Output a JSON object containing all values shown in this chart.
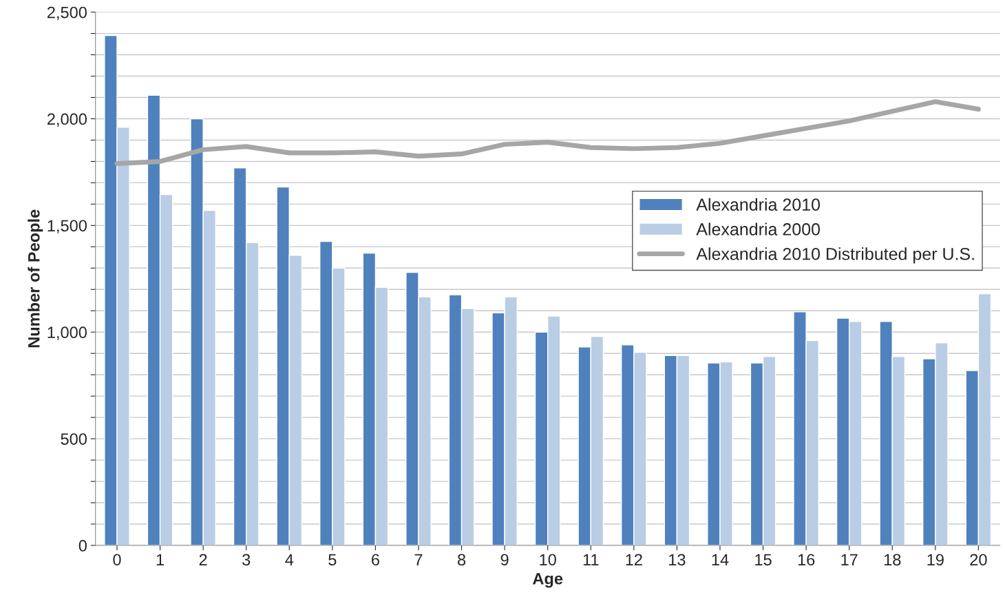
{
  "chart_data": {
    "type": "bar",
    "xlabel": "Age",
    "ylabel": "Number of People",
    "categories": [
      "0",
      "1",
      "2",
      "3",
      "4",
      "5",
      "6",
      "7",
      "8",
      "9",
      "10",
      "11",
      "12",
      "13",
      "14",
      "15",
      "16",
      "17",
      "18",
      "19",
      "20"
    ],
    "series": [
      {
        "name": "Alexandria 2010",
        "color": "#4f81bd",
        "values": [
          2390,
          2110,
          2000,
          1770,
          1680,
          1425,
          1370,
          1280,
          1175,
          1090,
          1000,
          930,
          940,
          890,
          855,
          855,
          1095,
          1065,
          1050,
          875,
          820
        ]
      },
      {
        "name": "Alexandria 2000",
        "color": "#b9cde5",
        "values": [
          1960,
          1645,
          1570,
          1420,
          1360,
          1300,
          1210,
          1165,
          1110,
          1165,
          1075,
          980,
          905,
          890,
          860,
          885,
          960,
          1050,
          885,
          950,
          1180
        ]
      },
      {
        "name": "Alexandria 2010 Distributed per U.S.",
        "type": "line",
        "color": "#a6a6a6",
        "values": [
          1790,
          1800,
          1855,
          1870,
          1840,
          1840,
          1845,
          1825,
          1835,
          1880,
          1890,
          1865,
          1860,
          1865,
          1885,
          1920,
          1955,
          1990,
          2035,
          2080,
          2045
        ]
      }
    ],
    "ylim": [
      0,
      2500
    ],
    "yticks": [
      0,
      {
        "value": 100,
        "label": null
      },
      {
        "value": 200,
        "label": null
      },
      {
        "value": 300,
        "label": null
      },
      {
        "value": 400,
        "label": null
      },
      {
        "value": 500,
        "label": "500"
      },
      {
        "value": 600,
        "label": null
      },
      {
        "value": 700,
        "label": null
      },
      {
        "value": 800,
        "label": null
      },
      {
        "value": 900,
        "label": null
      },
      {
        "value": 1000,
        "label": "1,000"
      },
      {
        "value": 1100,
        "label": null
      },
      {
        "value": 1200,
        "label": null
      },
      {
        "value": 1300,
        "label": null
      },
      {
        "value": 1400,
        "label": null
      },
      {
        "value": 1500,
        "label": "1,500"
      },
      {
        "value": 1600,
        "label": null
      },
      {
        "value": 1700,
        "label": null
      },
      {
        "value": 1800,
        "label": null
      },
      {
        "value": 1900,
        "label": null
      },
      {
        "value": 2000,
        "label": "2,000"
      },
      {
        "value": 2100,
        "label": null
      },
      {
        "value": 2200,
        "label": null
      },
      {
        "value": 2300,
        "label": null
      },
      {
        "value": 2400,
        "label": null
      },
      {
        "value": 2500,
        "label": "2,500"
      }
    ],
    "grid": "y",
    "legend": "right",
    "marker": "none",
    "line_style": "solid"
  }
}
